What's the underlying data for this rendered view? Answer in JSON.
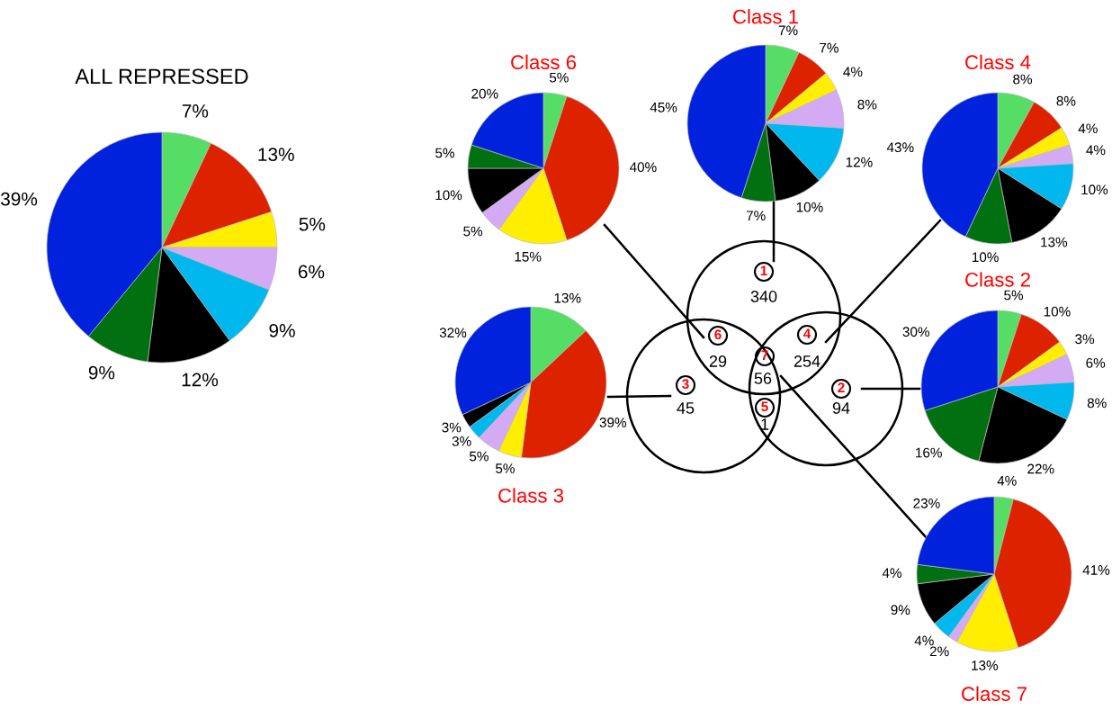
{
  "chart_data": [
    {
      "type": "pie",
      "title": "ALL REPRESSED",
      "categories": [
        null,
        null,
        null,
        null,
        null,
        null,
        null,
        null
      ],
      "values": [
        7,
        13,
        5,
        6,
        9,
        12,
        9,
        39
      ],
      "colors": [
        "#55dd66",
        "#dd2200",
        "#ffee00",
        "#d4aaf5",
        "#00b8ee",
        "#000000",
        "#007010",
        "#0022dd"
      ],
      "value_labels": [
        "7%",
        "13%",
        "5%",
        "6%",
        "9%",
        "12%",
        "9%",
        "39%"
      ]
    },
    {
      "type": "pie",
      "title": "Class 6",
      "categories": [
        null,
        null,
        null,
        null,
        null,
        null,
        null
      ],
      "values": [
        5,
        40,
        15,
        5,
        10,
        5,
        20
      ],
      "colors": [
        "#55dd66",
        "#dd2200",
        "#ffee00",
        "#d4aaf5",
        "#000000",
        "#007010",
        "#0022dd"
      ],
      "value_labels": [
        "5%",
        "40%",
        "15%",
        "5%",
        "10%",
        "5%",
        "20%"
      ]
    },
    {
      "type": "pie",
      "title": "Class 1",
      "categories": [
        null,
        null,
        null,
        null,
        null,
        null,
        null,
        null
      ],
      "values": [
        7,
        7,
        4,
        8,
        12,
        10,
        7,
        45
      ],
      "colors": [
        "#55dd66",
        "#dd2200",
        "#ffee00",
        "#d4aaf5",
        "#00b8ee",
        "#000000",
        "#007010",
        "#0022dd"
      ],
      "value_labels": [
        "7%",
        "7%",
        "4%",
        "8%",
        "12%",
        "10%",
        "7%",
        "45%"
      ]
    },
    {
      "type": "pie",
      "title": "Class 4",
      "categories": [
        null,
        null,
        null,
        null,
        null,
        null,
        null,
        null
      ],
      "values": [
        8,
        8,
        4,
        4,
        10,
        13,
        10,
        43
      ],
      "colors": [
        "#55dd66",
        "#dd2200",
        "#ffee00",
        "#d4aaf5",
        "#00b8ee",
        "#000000",
        "#007010",
        "#0022dd"
      ],
      "value_labels": [
        "8%",
        "8%",
        "4%",
        "4%",
        "10%",
        "13%",
        "10%",
        "43%"
      ]
    },
    {
      "type": "pie",
      "title": "Class 3",
      "categories": [
        null,
        null,
        null,
        null,
        null,
        null,
        null
      ],
      "values": [
        13,
        39,
        5,
        5,
        3,
        3,
        32
      ],
      "colors": [
        "#55dd66",
        "#dd2200",
        "#ffee00",
        "#d4aaf5",
        "#00b8ee",
        "#000000",
        "#0022dd"
      ],
      "value_labels": [
        "13%",
        "39%",
        "5%",
        "5%",
        "3%",
        "3%",
        "32%"
      ]
    },
    {
      "type": "pie",
      "title": "Class 2",
      "categories": [
        null,
        null,
        null,
        null,
        null,
        null,
        null,
        null
      ],
      "values": [
        5,
        10,
        3,
        6,
        8,
        22,
        16,
        30
      ],
      "colors": [
        "#55dd66",
        "#dd2200",
        "#ffee00",
        "#d4aaf5",
        "#00b8ee",
        "#000000",
        "#007010",
        "#0022dd"
      ],
      "value_labels": [
        "5%",
        "10%",
        "3%",
        "6%",
        "8%",
        "22%",
        "16%",
        "30%"
      ]
    },
    {
      "type": "pie",
      "title": "Class 7",
      "categories": [
        null,
        null,
        null,
        null,
        null,
        null,
        null,
        null
      ],
      "values": [
        4,
        41,
        13,
        2,
        4,
        9,
        4,
        23
      ],
      "colors": [
        "#55dd66",
        "#dd2200",
        "#ffee00",
        "#d4aaf5",
        "#00b8ee",
        "#000000",
        "#007010",
        "#0022dd"
      ],
      "value_labels": [
        "4%",
        "41%",
        "13%",
        "2%",
        "4%",
        "9%",
        "4%",
        "23%"
      ]
    },
    {
      "type": "other",
      "categories": [
        "1",
        "2",
        "3",
        "4",
        "5",
        "6",
        "7"
      ],
      "values": [
        340,
        94,
        45,
        254,
        1,
        29,
        56
      ],
      "data_labels": true
    }
  ]
}
